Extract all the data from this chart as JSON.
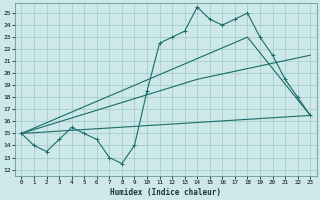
{
  "xlabel": "Humidex (Indice chaleur)",
  "bg_color": "#cce8e8",
  "grid_color": "#aacccc",
  "line_color": "#1a6b6b",
  "xlim": [
    -0.5,
    23.5
  ],
  "ylim": [
    11.5,
    25.8
  ],
  "xticks": [
    0,
    1,
    2,
    3,
    4,
    5,
    6,
    7,
    8,
    9,
    10,
    11,
    12,
    13,
    14,
    15,
    16,
    17,
    18,
    19,
    20,
    21,
    22,
    23
  ],
  "yticks": [
    12,
    13,
    14,
    15,
    16,
    17,
    18,
    19,
    20,
    21,
    22,
    23,
    24,
    25
  ],
  "series1_x": [
    0,
    1,
    2,
    3,
    4,
    5,
    6,
    7,
    8,
    9,
    10,
    11,
    12,
    13,
    14,
    15,
    16,
    17,
    18,
    19,
    20,
    21,
    22,
    23
  ],
  "series1_y": [
    15,
    14,
    13.5,
    14.5,
    15.5,
    15,
    14.5,
    13,
    12.5,
    14,
    18.5,
    22.5,
    23,
    23.5,
    25.5,
    24.5,
    24,
    24.5,
    25,
    23,
    21.5,
    19.5,
    18,
    16.5
  ],
  "series2_x": [
    0,
    23
  ],
  "series2_y": [
    15,
    16.5
  ],
  "series3_x": [
    0,
    14,
    23
  ],
  "series3_y": [
    15,
    19.5,
    21.5
  ],
  "series4_x": [
    0,
    18,
    23
  ],
  "series4_y": [
    15,
    23,
    16.5
  ]
}
